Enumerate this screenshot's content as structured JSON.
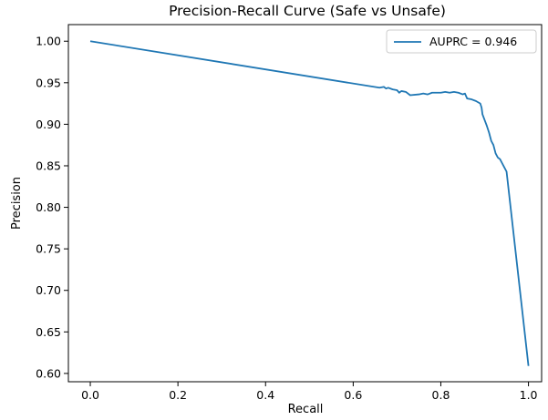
{
  "chart_data": {
    "type": "line",
    "title": "Precision-Recall Curve (Safe vs Unsafe)",
    "xlabel": "Recall",
    "ylabel": "Precision",
    "xlim": [
      -0.05,
      1.03
    ],
    "ylim": [
      0.59,
      1.02
    ],
    "x_ticks": [
      0.0,
      0.2,
      0.4,
      0.6,
      0.8,
      1.0
    ],
    "x_tick_labels": [
      "0.0",
      "0.2",
      "0.4",
      "0.6",
      "0.8",
      "1.0"
    ],
    "y_ticks": [
      0.6,
      0.65,
      0.7,
      0.75,
      0.8,
      0.85,
      0.9,
      0.95,
      1.0
    ],
    "y_tick_labels": [
      "0.60",
      "0.65",
      "0.70",
      "0.75",
      "0.80",
      "0.85",
      "0.90",
      "0.95",
      "1.00"
    ],
    "grid": false,
    "legend_position": "top-right",
    "series": [
      {
        "name": "AUPRC = 0.946",
        "color": "#1f77b4",
        "points": [
          [
            0.0,
            1.0
          ],
          [
            0.66,
            0.944
          ],
          [
            0.67,
            0.945
          ],
          [
            0.675,
            0.943
          ],
          [
            0.68,
            0.944
          ],
          [
            0.69,
            0.942
          ],
          [
            0.7,
            0.941
          ],
          [
            0.705,
            0.938
          ],
          [
            0.71,
            0.94
          ],
          [
            0.72,
            0.939
          ],
          [
            0.73,
            0.935
          ],
          [
            0.75,
            0.936
          ],
          [
            0.76,
            0.937
          ],
          [
            0.77,
            0.936
          ],
          [
            0.78,
            0.938
          ],
          [
            0.8,
            0.938
          ],
          [
            0.81,
            0.939
          ],
          [
            0.82,
            0.938
          ],
          [
            0.83,
            0.939
          ],
          [
            0.84,
            0.938
          ],
          [
            0.85,
            0.936
          ],
          [
            0.855,
            0.937
          ],
          [
            0.86,
            0.931
          ],
          [
            0.87,
            0.93
          ],
          [
            0.88,
            0.928
          ],
          [
            0.89,
            0.925
          ],
          [
            0.893,
            0.92
          ],
          [
            0.895,
            0.912
          ],
          [
            0.9,
            0.905
          ],
          [
            0.905,
            0.898
          ],
          [
            0.91,
            0.89
          ],
          [
            0.915,
            0.88
          ],
          [
            0.92,
            0.875
          ],
          [
            0.925,
            0.865
          ],
          [
            0.93,
            0.86
          ],
          [
            0.935,
            0.858
          ],
          [
            0.94,
            0.853
          ],
          [
            0.945,
            0.848
          ],
          [
            0.95,
            0.843
          ],
          [
            1.0,
            0.609
          ]
        ]
      }
    ]
  }
}
